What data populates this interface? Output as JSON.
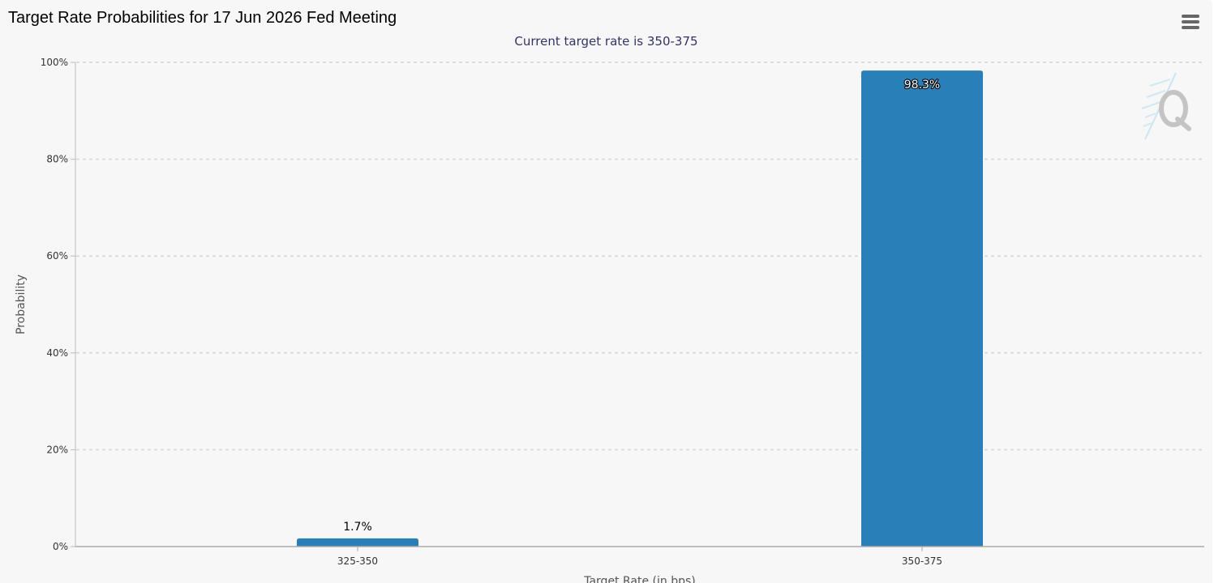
{
  "title": "Target Rate Probabilities for 17 Jun 2026 Fed Meeting",
  "subtitle": "Current target rate is 350-375",
  "menu_icon": "hamburger-menu-icon",
  "watermark_icon": "q-logo-watermark",
  "colors": {
    "bar": "#2980b9",
    "subtitle": "#333366",
    "grid": "#d9d9d9",
    "axis": "#aaaaaa",
    "background": "#f7f7f7"
  },
  "chart_data": {
    "type": "bar",
    "title": "Target Rate Probabilities for 17 Jun 2026 Fed Meeting",
    "subtitle": "Current target rate is 350-375",
    "categories": [
      "325-350",
      "350-375"
    ],
    "values": [
      1.7,
      98.3
    ],
    "data_labels": [
      "1.7%",
      "98.3%"
    ],
    "xlabel": "Target Rate (in bps)",
    "ylabel": "Probability",
    "ylim": [
      0,
      100
    ],
    "yticks": [
      0,
      20,
      40,
      60,
      80,
      100
    ],
    "ytick_labels": [
      "0%",
      "20%",
      "40%",
      "60%",
      "80%",
      "100%"
    ],
    "grid": true,
    "grid_style": "dotted",
    "legend": false
  }
}
